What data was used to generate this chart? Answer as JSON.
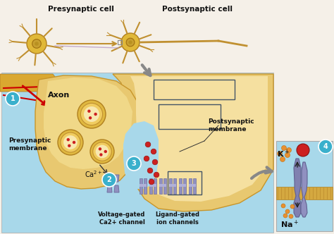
{
  "fig_width": 4.74,
  "fig_height": 3.32,
  "dpi": 100,
  "bg_top": "#f5f0e8",
  "bg_main": "#a8d8ea",
  "axon_dark": "#c8952a",
  "axon_mid": "#daa830",
  "terminal_fill": "#e8c870",
  "terminal_light": "#f0d888",
  "postsynaptic_fill": "#e8c870",
  "postsynaptic_light": "#f5e0a0",
  "synaptic_cleft": "#a8d8ea",
  "vesicle_outer": "#e0b840",
  "vesicle_ring": "#f0cc60",
  "vesicle_inner": "#f8e8b0",
  "red_dot": "#cc2020",
  "channel_fill": "#9090c0",
  "channel_edge": "#7070a0",
  "teal_circle": "#3ab0cc",
  "inset_bg": "#a8d8ea",
  "inset_membrane_fill": "#c0c8d8",
  "inset_channel": "#7070a0",
  "inset_red_ball": "#cc2020",
  "inset_orange": "#e89030",
  "arrow_gray": "#888888",
  "red_arrow": "#cc0000",
  "purple_arrow": "#b090c0",
  "text_dark": "#111111",
  "title_presynaptic": "Presynaptic cell",
  "title_postsynaptic": "Postsynaptic cell",
  "label_axon": "Axon",
  "label_pre_mem": "Presynaptic\nmembrane",
  "label_post_mem": "Postsynaptic\nmembrane",
  "label_ca": "Ca2+",
  "label_voltage": "Voltage-gated\nCa2+ channel",
  "label_ligand": "Ligand-gated\nion channels",
  "label_k": "K+",
  "label_na": "Na+"
}
